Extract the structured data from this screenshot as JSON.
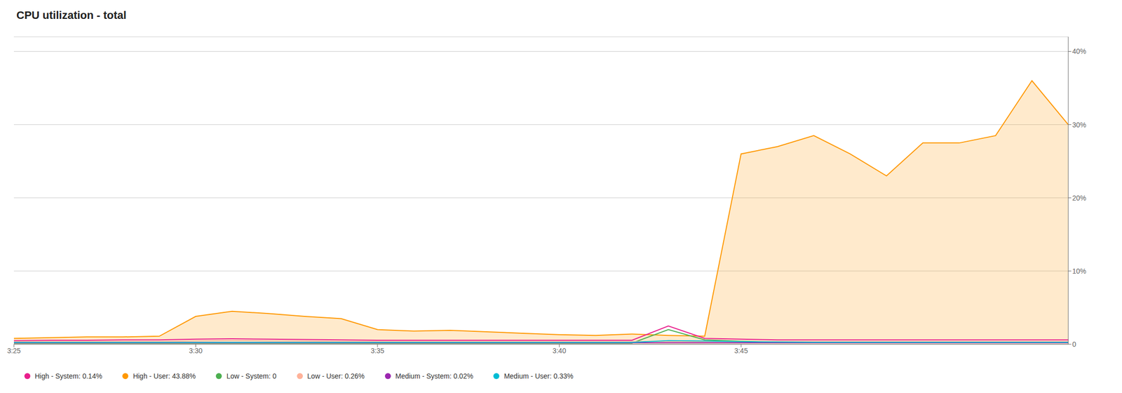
{
  "chart_data": {
    "type": "line",
    "title": "CPU utilization - total",
    "x": [
      0,
      1,
      2,
      3,
      4,
      5,
      6,
      7,
      8,
      9,
      10,
      11,
      12,
      13,
      14,
      15,
      16,
      17,
      18,
      19,
      20,
      21,
      22,
      23,
      24,
      25,
      26,
      27,
      28,
      29
    ],
    "xlim": [
      0,
      29
    ],
    "xticks": [
      {
        "value": 0,
        "label": "3:25"
      },
      {
        "value": 5,
        "label": "3:30"
      },
      {
        "value": 10,
        "label": "3:35"
      },
      {
        "value": 15,
        "label": "3:40"
      },
      {
        "value": 20,
        "label": "3:45"
      }
    ],
    "ylim": [
      0,
      42
    ],
    "yticks": [
      0,
      {
        "value": 10,
        "label": "10%"
      },
      {
        "value": 20,
        "label": "20%"
      },
      {
        "value": 30,
        "label": "30%"
      },
      {
        "value": 40,
        "label": "40%"
      }
    ],
    "grid": true,
    "legend": "bottom",
    "series": [
      {
        "name": "High - System: 0.14%",
        "color": "#e91e8c",
        "type": "line",
        "values": [
          0.5,
          0.55,
          0.55,
          0.6,
          0.6,
          0.7,
          0.75,
          0.7,
          0.65,
          0.6,
          0.55,
          0.55,
          0.55,
          0.55,
          0.55,
          0.55,
          0.55,
          0.55,
          2.5,
          0.8,
          0.7,
          0.6,
          0.6,
          0.6,
          0.6,
          0.6,
          0.6,
          0.6,
          0.6,
          0.6
        ]
      },
      {
        "name": "High - User: 43.88%",
        "color": "#ff9800",
        "type": "area",
        "values": [
          0.8,
          0.9,
          1.0,
          1.0,
          1.1,
          3.8,
          4.5,
          4.2,
          3.8,
          3.5,
          2.0,
          1.8,
          1.9,
          1.7,
          1.5,
          1.3,
          1.2,
          1.4,
          1.2,
          1.1,
          26.0,
          27.0,
          28.5,
          26.0,
          23.0,
          27.5,
          27.5,
          28.5,
          36.0,
          30.0
        ]
      },
      {
        "name": "Low - System: 0",
        "color": "#4caf50",
        "type": "line",
        "values": [
          0.15,
          0.15,
          0.15,
          0.15,
          0.15,
          0.15,
          0.15,
          0.15,
          0.15,
          0.15,
          0.15,
          0.15,
          0.15,
          0.15,
          0.15,
          0.15,
          0.15,
          0.15,
          2.0,
          0.6,
          0.4,
          0.3,
          0.25,
          0.22,
          0.2,
          0.2,
          0.2,
          0.2,
          0.2,
          0.2
        ]
      },
      {
        "name": "Low - User: 0.26%",
        "color": "#ffb299",
        "type": "line",
        "values": [
          0.35,
          0.35,
          0.35,
          0.38,
          0.35,
          0.45,
          0.5,
          0.45,
          0.42,
          0.38,
          0.35,
          0.35,
          0.35,
          0.35,
          0.35,
          0.35,
          0.35,
          0.35,
          0.38,
          0.35,
          0.35,
          0.35,
          0.35,
          0.35,
          0.35,
          0.35,
          0.35,
          0.35,
          0.35,
          0.35
        ]
      },
      {
        "name": "Medium - System: 0.02%",
        "color": "#9c27b0",
        "type": "line",
        "values": [
          0.2,
          0.2,
          0.2,
          0.2,
          0.2,
          0.2,
          0.2,
          0.2,
          0.2,
          0.2,
          0.2,
          0.2,
          0.2,
          0.2,
          0.2,
          0.2,
          0.2,
          0.2,
          0.2,
          0.2,
          0.2,
          0.2,
          0.2,
          0.2,
          0.2,
          0.2,
          0.2,
          0.2,
          0.2,
          0.2
        ]
      },
      {
        "name": "Medium - User: 0.33%",
        "color": "#00bcd4",
        "type": "line",
        "values": [
          0.25,
          0.25,
          0.25,
          0.25,
          0.25,
          0.25,
          0.25,
          0.25,
          0.25,
          0.25,
          0.25,
          0.25,
          0.25,
          0.25,
          0.25,
          0.25,
          0.25,
          0.25,
          0.5,
          0.45,
          0.35,
          0.3,
          0.28,
          0.27,
          0.27,
          0.27,
          0.27,
          0.27,
          0.27,
          0.27
        ]
      }
    ]
  }
}
